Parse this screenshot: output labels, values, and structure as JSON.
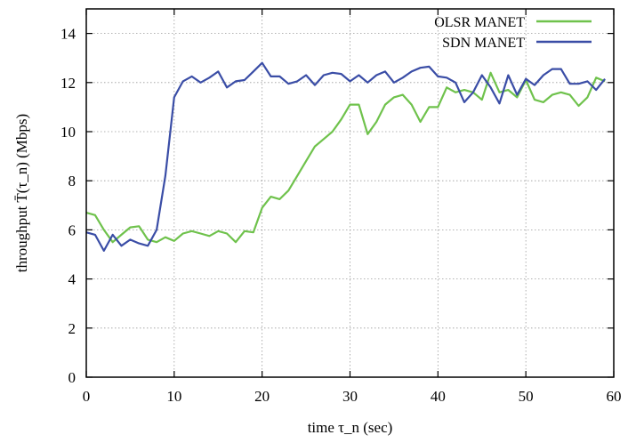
{
  "chart_data": {
    "type": "line",
    "title": "",
    "xlabel": "time τ_n (sec)",
    "ylabel": "throughput T̄(τ_n) (Mbps)",
    "xlim": [
      0,
      60
    ],
    "ylim": [
      0,
      15
    ],
    "xticks": [
      0,
      10,
      20,
      30,
      40,
      50,
      60
    ],
    "yticks": [
      0,
      2,
      4,
      6,
      8,
      10,
      12,
      14
    ],
    "grid": true,
    "legend_position": "top-right",
    "series": [
      {
        "name": "OLSR MANET",
        "color": "#6fc24c",
        "x": [
          0,
          1,
          2,
          3,
          4,
          5,
          6,
          7,
          8,
          9,
          10,
          11,
          12,
          13,
          14,
          15,
          16,
          17,
          18,
          19,
          20,
          21,
          22,
          23,
          24,
          25,
          26,
          27,
          28,
          29,
          30,
          31,
          32,
          33,
          34,
          35,
          36,
          37,
          38,
          39,
          40,
          41,
          42,
          43,
          44,
          45,
          46,
          47,
          48,
          49,
          50,
          51,
          52,
          53,
          54,
          55,
          56,
          57,
          58,
          59
        ],
        "y": [
          6.7,
          6.6,
          6.0,
          5.5,
          5.8,
          6.1,
          6.15,
          5.6,
          5.5,
          5.7,
          5.55,
          5.85,
          5.95,
          5.85,
          5.75,
          5.95,
          5.85,
          5.5,
          5.95,
          5.9,
          6.9,
          7.35,
          7.25,
          7.6,
          8.2,
          8.8,
          9.4,
          9.7,
          10.0,
          10.5,
          11.1,
          11.1,
          9.9,
          10.4,
          11.1,
          11.4,
          11.5,
          11.1,
          10.4,
          11.0,
          11.0,
          11.8,
          11.6,
          11.7,
          11.6,
          11.3,
          12.4,
          11.6,
          11.7,
          11.4,
          12.1,
          11.3,
          11.2,
          11.5,
          11.6,
          11.5,
          11.05,
          11.4,
          12.2,
          12.05
        ]
      },
      {
        "name": "SDN MANET",
        "color": "#3a4da6",
        "x": [
          0,
          1,
          2,
          3,
          4,
          5,
          6,
          7,
          8,
          9,
          10,
          11,
          12,
          13,
          14,
          15,
          16,
          17,
          18,
          19,
          20,
          21,
          22,
          23,
          24,
          25,
          26,
          27,
          28,
          29,
          30,
          31,
          32,
          33,
          34,
          35,
          36,
          37,
          38,
          39,
          40,
          41,
          42,
          43,
          44,
          45,
          46,
          47,
          48,
          49,
          50,
          51,
          52,
          53,
          54,
          55,
          56,
          57,
          58,
          59
        ],
        "y": [
          5.9,
          5.8,
          5.15,
          5.8,
          5.35,
          5.6,
          5.45,
          5.35,
          6.0,
          8.2,
          11.4,
          12.05,
          12.25,
          12.0,
          12.2,
          12.45,
          11.8,
          12.05,
          12.1,
          12.45,
          12.8,
          12.25,
          12.25,
          11.95,
          12.05,
          12.3,
          11.9,
          12.3,
          12.4,
          12.35,
          12.05,
          12.3,
          12.0,
          12.3,
          12.45,
          12.0,
          12.2,
          12.45,
          12.6,
          12.65,
          12.25,
          12.2,
          12.0,
          11.2,
          11.6,
          12.3,
          11.8,
          11.15,
          12.3,
          11.5,
          12.15,
          11.9,
          12.3,
          12.55,
          12.55,
          11.95,
          11.95,
          12.05,
          11.7,
          12.15
        ]
      }
    ]
  }
}
